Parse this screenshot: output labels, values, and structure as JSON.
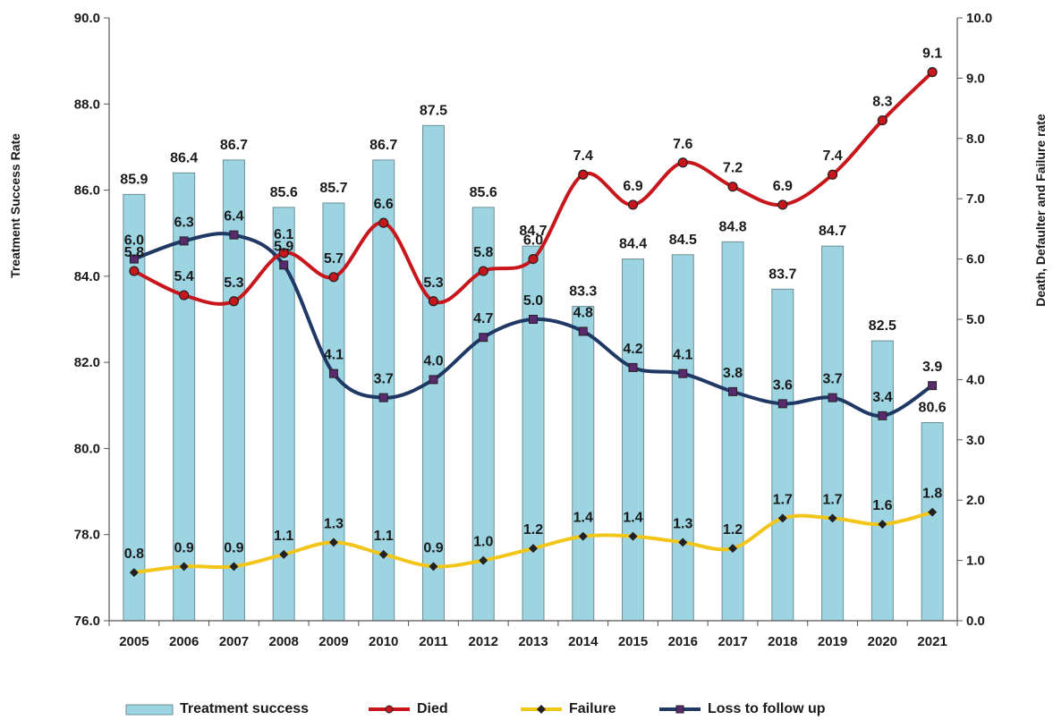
{
  "chart_data": {
    "type": "bar",
    "title": "",
    "categories": [
      "2005",
      "2006",
      "2007",
      "2008",
      "2009",
      "2010",
      "2011",
      "2012",
      "2013",
      "2014",
      "2015",
      "2016",
      "2017",
      "2018",
      "2019",
      "2020",
      "2021"
    ],
    "ylabel_left": "Treatment Success Rate",
    "ylabel_right": "Death, Defaulter and Failure rate",
    "ylim_left": [
      76.0,
      90.0
    ],
    "yticks_left": [
      "76.0",
      "78.0",
      "80.0",
      "82.0",
      "84.0",
      "86.0",
      "88.0",
      "90.0"
    ],
    "ylim_right": [
      0.0,
      10.0
    ],
    "yticks_right": [
      "0.0",
      "1.0",
      "2.0",
      "3.0",
      "4.0",
      "5.0",
      "6.0",
      "7.0",
      "8.0",
      "9.0",
      "10.0"
    ],
    "bar_series": {
      "name": "Treatment success",
      "axis": "left",
      "color": "#9dd4e2",
      "values": [
        85.9,
        86.4,
        86.7,
        85.6,
        85.7,
        86.7,
        87.5,
        85.6,
        84.7,
        83.3,
        84.4,
        84.5,
        84.8,
        83.7,
        84.7,
        82.5,
        80.6
      ]
    },
    "line_series": [
      {
        "name": "Died",
        "axis": "right",
        "color": "#c8161d",
        "marker": "circle",
        "values": [
          5.8,
          5.4,
          5.3,
          6.1,
          5.7,
          6.6,
          5.3,
          5.8,
          6.0,
          7.4,
          6.9,
          7.6,
          7.2,
          6.9,
          7.4,
          8.3,
          9.1
        ]
      },
      {
        "name": "Failure",
        "axis": "right",
        "color": "#f2c51a",
        "marker": "diamond",
        "values": [
          0.8,
          0.9,
          0.9,
          1.1,
          1.3,
          1.1,
          0.9,
          1.0,
          1.2,
          1.4,
          1.4,
          1.3,
          1.2,
          1.7,
          1.7,
          1.6,
          1.8
        ]
      },
      {
        "name": "Loss to follow up",
        "axis": "right",
        "color": "#1f3864",
        "marker": "square",
        "values": [
          6.0,
          6.3,
          6.4,
          5.9,
          4.1,
          3.7,
          4.0,
          4.7,
          5.0,
          4.8,
          4.2,
          4.1,
          3.8,
          3.6,
          3.7,
          3.4,
          3.9
        ]
      }
    ],
    "legend_position": "bottom",
    "grid": false
  }
}
